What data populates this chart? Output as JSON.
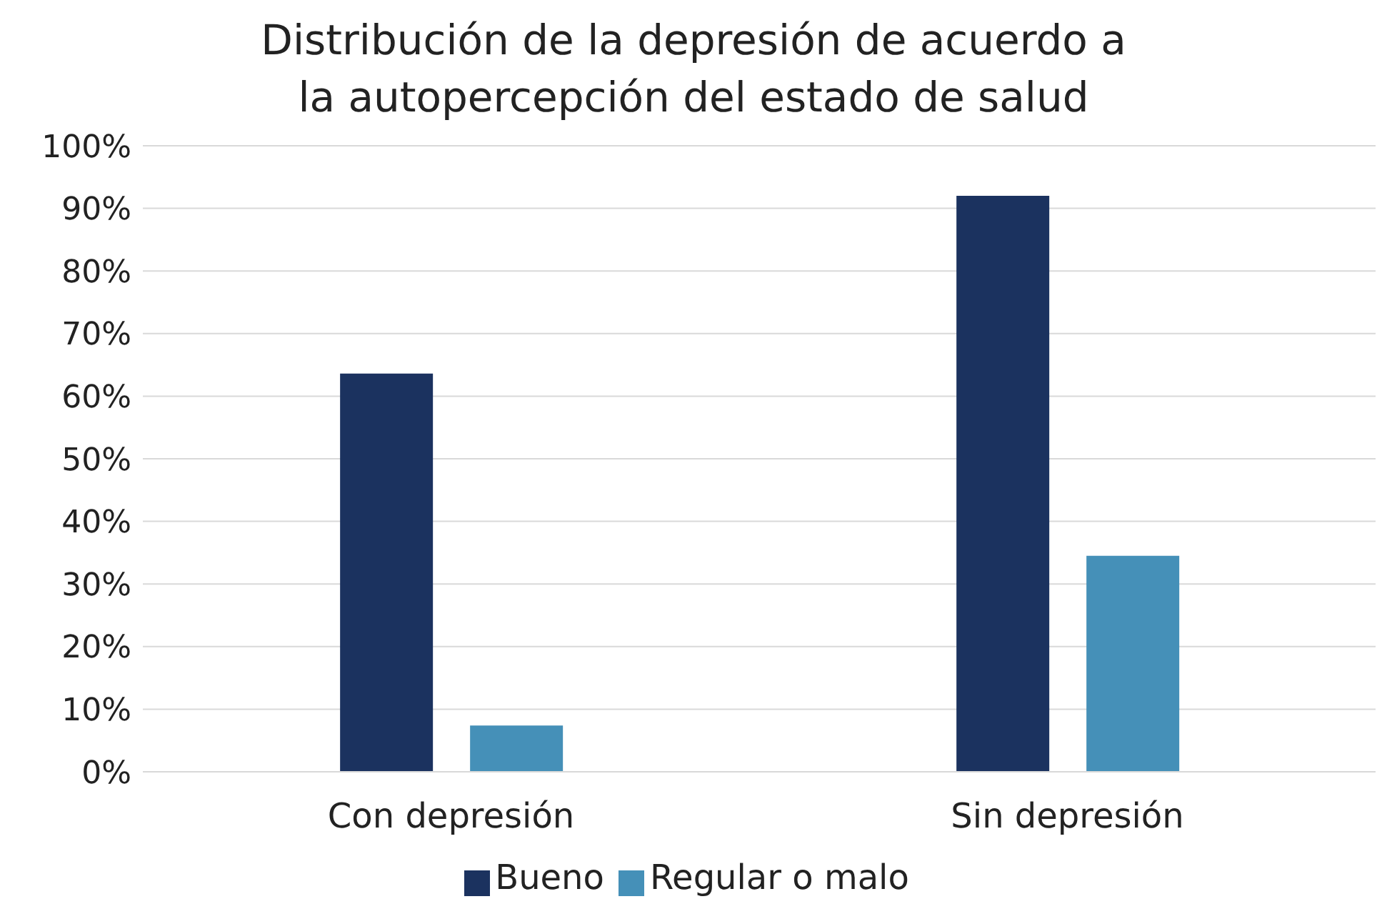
{
  "chart_data": {
    "type": "bar",
    "title": "Distribución de la depresión de acuerdo a la autopercepción del estado de salud",
    "categories": [
      "Con depresión",
      "Sin depresión"
    ],
    "series": [
      {
        "name": "Bueno",
        "color": "#1b325f",
        "values": [
          63.6,
          92.0
        ]
      },
      {
        "name": "Regular o malo",
        "color": "#4590b8",
        "values": [
          7.4,
          34.5
        ]
      }
    ],
    "ylim": [
      0,
      100
    ],
    "yticks": [
      {
        "value": 0,
        "label": "0%"
      },
      {
        "value": 10,
        "label": "10%"
      },
      {
        "value": 20,
        "label": "20%"
      },
      {
        "value": 30,
        "label": "30%"
      },
      {
        "value": 40,
        "label": "40%"
      },
      {
        "value": 50,
        "label": "50%"
      },
      {
        "value": 60,
        "label": "60%"
      },
      {
        "value": 70,
        "label": "70%"
      },
      {
        "value": 80,
        "label": "80%"
      },
      {
        "value": 90,
        "label": "90%"
      },
      {
        "value": 100,
        "label": "100%"
      }
    ],
    "grid": "y",
    "legend": "bottom"
  }
}
